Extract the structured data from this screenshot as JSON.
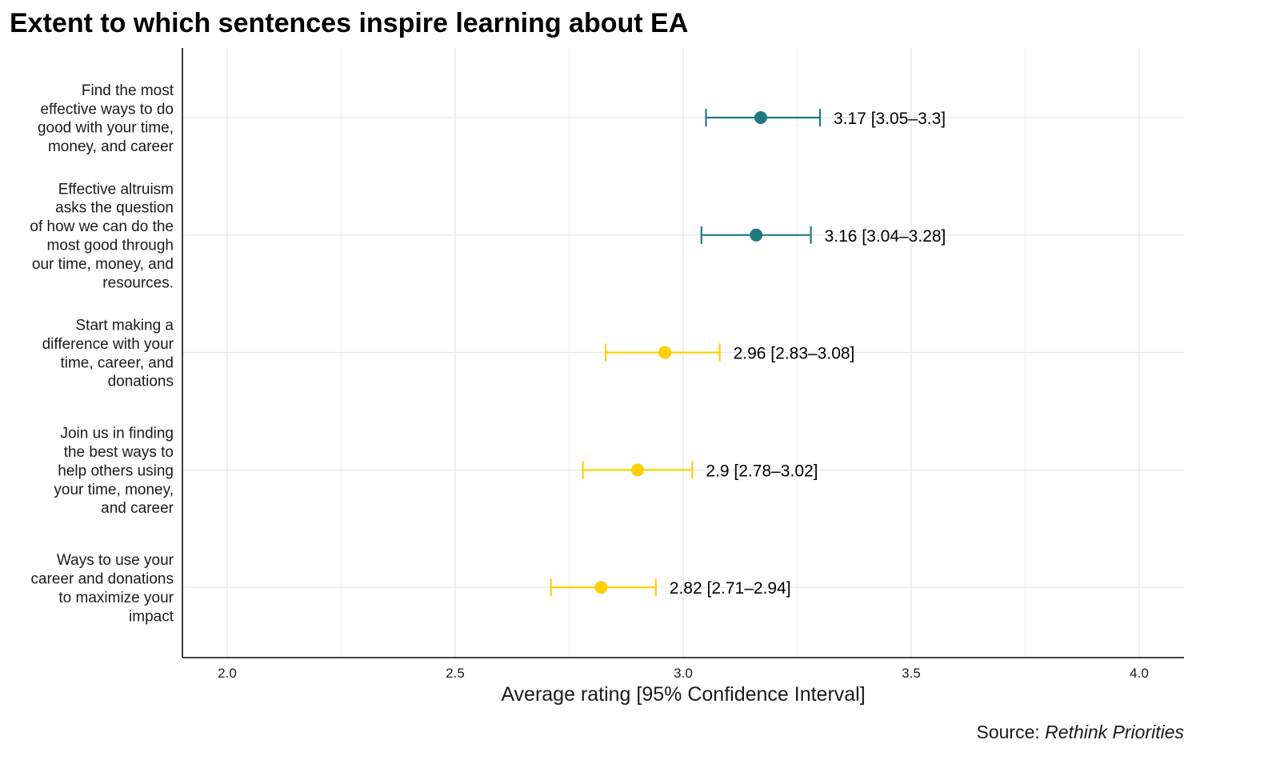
{
  "chart_data": {
    "type": "errorbar",
    "title": "Extent to which sentences inspire learning about EA",
    "xlabel": "Average rating [95% Confidence Interval]",
    "xlim": [
      1.9,
      4.1
    ],
    "xticks": [
      "2.0",
      "2.5",
      "3.0",
      "3.5",
      "4.0"
    ],
    "grid": true,
    "source_label": "Source: ",
    "source_name": "Rethink Priorities",
    "colors": {
      "teal": "#1f7a80",
      "yellow": "#ffd000"
    },
    "items": [
      {
        "label": [
          "Find the most",
          "effective ways to do",
          "good with your time,",
          "money, and career"
        ],
        "mean": 3.17,
        "lo": 3.05,
        "hi": 3.3,
        "text": "3.17 [3.05–3.3]",
        "color": "#1f7a80"
      },
      {
        "label": [
          "Effective altruism",
          "asks the question",
          "of how we can do the",
          "most good through",
          "our time, money, and",
          "resources."
        ],
        "mean": 3.16,
        "lo": 3.04,
        "hi": 3.28,
        "text": "3.16 [3.04–3.28]",
        "color": "#1f7a80"
      },
      {
        "label": [
          "Start making a",
          "difference with your",
          "time, career, and",
          "donations"
        ],
        "mean": 2.96,
        "lo": 2.83,
        "hi": 3.08,
        "text": "2.96 [2.83–3.08]",
        "color": "#ffd000"
      },
      {
        "label": [
          "Join us in finding",
          "the best ways to",
          "help others using",
          "your time, money,",
          "and career"
        ],
        "mean": 2.9,
        "lo": 2.78,
        "hi": 3.02,
        "text": "2.9 [2.78–3.02]",
        "color": "#ffd000"
      },
      {
        "label": [
          "Ways to use your",
          "career and donations",
          "to maximize your",
          "impact"
        ],
        "mean": 2.82,
        "lo": 2.71,
        "hi": 2.94,
        "text": "2.82 [2.71–2.94]",
        "color": "#ffd000"
      }
    ]
  }
}
